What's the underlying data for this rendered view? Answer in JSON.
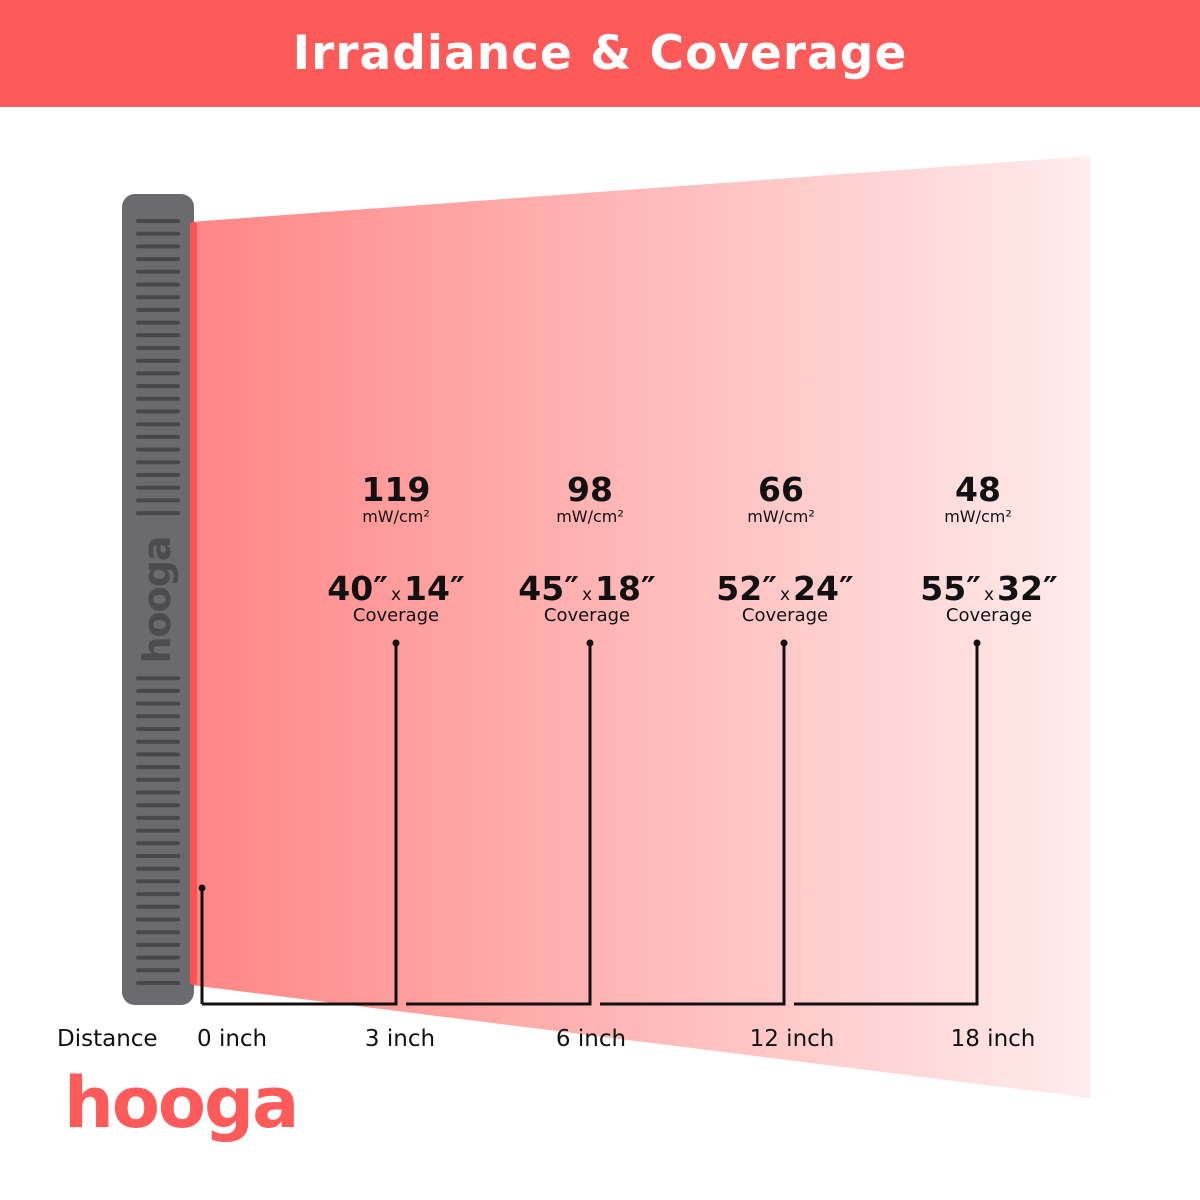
{
  "title": "Irradiance & Coverage",
  "brand": "hooga",
  "colors": {
    "header": "#ff5a5a",
    "beam_start": "#ff8585",
    "beam_end": "#ffecec",
    "device": "#6a6a6f",
    "emitter": "#ff5252"
  },
  "distance_label": "Distance",
  "points": [
    {
      "distance": "0 inch"
    },
    {
      "distance": "3 inch",
      "irradiance": "119",
      "unit": "mW/cm²",
      "width": "40″",
      "height": "14″",
      "coverage_label": "Coverage"
    },
    {
      "distance": "6 inch",
      "irradiance": "98",
      "unit": "mW/cm²",
      "width": "45″",
      "height": "18″",
      "coverage_label": "Coverage"
    },
    {
      "distance": "12 inch",
      "irradiance": "66",
      "unit": "mW/cm²",
      "width": "52″",
      "height": "24″",
      "coverage_label": "Coverage"
    },
    {
      "distance": "18 inch",
      "irradiance": "48",
      "unit": "mW/cm²",
      "width": "55″",
      "height": "32″",
      "coverage_label": "Coverage"
    }
  ],
  "times_sign": "x"
}
